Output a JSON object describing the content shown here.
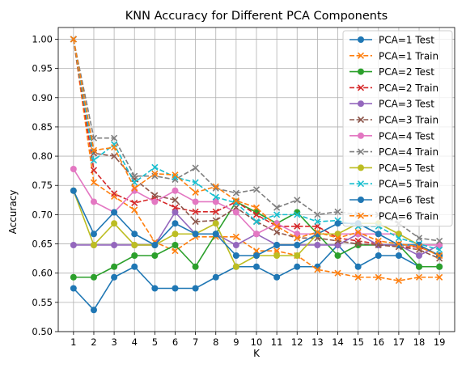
{
  "chart_data": {
    "type": "line",
    "title": "KNN Accuracy for Different PCA Components",
    "xlabel": "K",
    "ylabel": "Accuracy",
    "x": [
      1,
      2,
      3,
      4,
      5,
      6,
      7,
      8,
      9,
      10,
      11,
      12,
      13,
      14,
      15,
      16,
      17,
      18,
      19
    ],
    "xticks": [
      "1",
      "2",
      "3",
      "4",
      "5",
      "6",
      "7",
      "8",
      "9",
      "10",
      "11",
      "12",
      "13",
      "14",
      "15",
      "16",
      "17",
      "18",
      "19"
    ],
    "ylim": [
      0.5,
      1.02
    ],
    "yticks": [
      "0.50",
      "0.55",
      "0.60",
      "0.65",
      "0.70",
      "0.75",
      "0.80",
      "0.85",
      "0.90",
      "0.95",
      "1.00"
    ],
    "grid": true,
    "legend_position": "upper-right",
    "series": [
      {
        "name": "PCA=1 Test",
        "color": "#1f77b4",
        "style": "solid",
        "marker": "circle",
        "values": [
          0.574,
          0.537,
          0.593,
          0.611,
          0.574,
          0.574,
          0.574,
          0.593,
          0.611,
          0.611,
          0.593,
          0.611,
          0.611,
          0.648,
          0.611,
          0.63,
          0.63,
          0.611,
          0.611
        ]
      },
      {
        "name": "PCA=1 Train",
        "color": "#ff7f0e",
        "style": "dashed",
        "marker": "x",
        "values": [
          1.0,
          0.755,
          0.731,
          0.708,
          0.653,
          0.638,
          0.662,
          0.662,
          0.662,
          0.638,
          0.638,
          0.63,
          0.606,
          0.6,
          0.593,
          0.593,
          0.587,
          0.593,
          0.593
        ]
      },
      {
        "name": "PCA=2 Test",
        "color": "#2ca02c",
        "style": "solid",
        "marker": "circle",
        "values": [
          0.593,
          0.593,
          0.611,
          0.63,
          0.63,
          0.648,
          0.611,
          0.667,
          0.722,
          0.704,
          0.685,
          0.704,
          0.667,
          0.63,
          0.648,
          0.648,
          0.648,
          0.611,
          0.611
        ]
      },
      {
        "name": "PCA=2 Train",
        "color": "#d62728",
        "style": "dashed",
        "marker": "x",
        "values": [
          1.0,
          0.776,
          0.736,
          0.72,
          0.728,
          0.712,
          0.705,
          0.705,
          0.722,
          0.7,
          0.68,
          0.68,
          0.68,
          0.66,
          0.655,
          0.65,
          0.645,
          0.645,
          0.63
        ]
      },
      {
        "name": "PCA=3 Test",
        "color": "#9467bd",
        "style": "solid",
        "marker": "circle",
        "values": [
          0.648,
          0.648,
          0.648,
          0.648,
          0.648,
          0.704,
          0.667,
          0.667,
          0.648,
          0.667,
          0.648,
          0.648,
          0.648,
          0.648,
          0.667,
          0.648,
          0.648,
          0.63,
          0.648
        ]
      },
      {
        "name": "PCA=3 Train",
        "color": "#8c564b",
        "style": "dashed",
        "marker": "x",
        "values": [
          1.0,
          0.805,
          0.8,
          0.761,
          0.733,
          0.725,
          0.688,
          0.69,
          0.712,
          0.688,
          0.67,
          0.66,
          0.66,
          0.655,
          0.65,
          0.648,
          0.645,
          0.64,
          0.625
        ]
      },
      {
        "name": "PCA=4 Test",
        "color": "#e377c2",
        "style": "solid",
        "marker": "circle",
        "values": [
          0.778,
          0.722,
          0.704,
          0.741,
          0.722,
          0.741,
          0.722,
          0.722,
          0.704,
          0.667,
          0.685,
          0.667,
          0.667,
          0.667,
          0.667,
          0.667,
          0.667,
          0.648,
          0.648
        ]
      },
      {
        "name": "PCA=4 Train",
        "color": "#7f7f7f",
        "style": "dashed",
        "marker": "x",
        "values": [
          1.0,
          0.831,
          0.831,
          0.766,
          0.766,
          0.76,
          0.78,
          0.745,
          0.737,
          0.743,
          0.712,
          0.725,
          0.7,
          0.705,
          0.7,
          0.7,
          0.685,
          0.66,
          0.655
        ]
      },
      {
        "name": "PCA=5 Test",
        "color": "#bcbd22",
        "style": "solid",
        "marker": "circle",
        "values": [
          0.741,
          0.648,
          0.685,
          0.648,
          0.648,
          0.667,
          0.667,
          0.685,
          0.611,
          0.63,
          0.63,
          0.63,
          0.667,
          0.667,
          0.685,
          0.685,
          0.667,
          0.648,
          0.63
        ]
      },
      {
        "name": "PCA=5 Train",
        "color": "#17becf",
        "style": "dashed",
        "marker": "x",
        "values": [
          1.0,
          0.793,
          0.82,
          0.755,
          0.781,
          0.764,
          0.755,
          0.73,
          0.72,
          0.688,
          0.7,
          0.7,
          0.688,
          0.69,
          0.68,
          0.68,
          0.66,
          0.65,
          0.64
        ]
      },
      {
        "name": "PCA=6 Test",
        "color": "#1f77b4",
        "style": "solid",
        "marker": "circle",
        "values": [
          0.741,
          0.667,
          0.704,
          0.667,
          0.648,
          0.685,
          0.667,
          0.667,
          0.63,
          0.63,
          0.648,
          0.648,
          0.667,
          0.685,
          0.685,
          0.667,
          0.648,
          0.648,
          0.63
        ]
      },
      {
        "name": "PCA=6 Train",
        "color": "#ff7f0e",
        "style": "dashed",
        "marker": "x",
        "values": [
          1.0,
          0.81,
          0.815,
          0.745,
          0.77,
          0.768,
          0.738,
          0.748,
          0.724,
          0.712,
          0.68,
          0.66,
          0.67,
          0.66,
          0.67,
          0.655,
          0.65,
          0.645,
          0.63
        ]
      }
    ]
  }
}
